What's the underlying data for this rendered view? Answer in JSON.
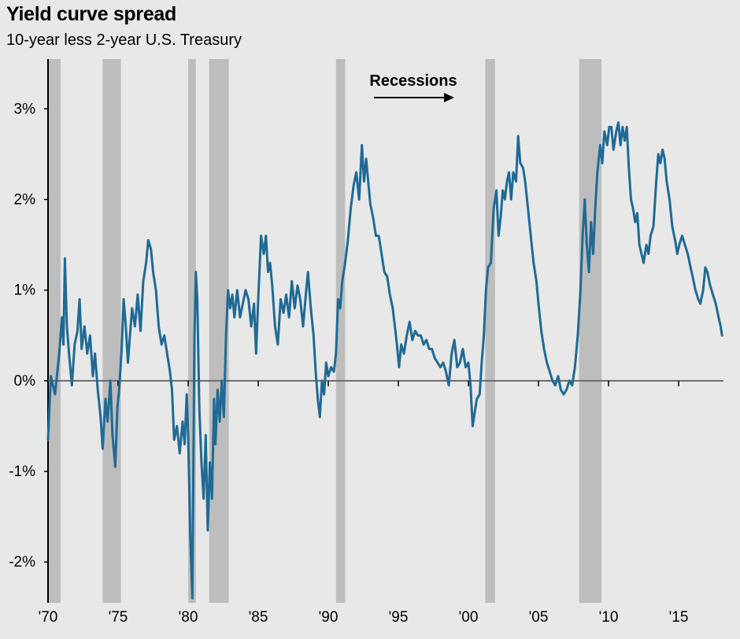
{
  "chart_data": {
    "type": "line",
    "title": "Yield curve spread",
    "subtitle": "10-year less 2-year U.S. Treasury",
    "annotation": "Recessions",
    "xlim": [
      1970,
      2018.2
    ],
    "ylim": [
      -2.45,
      3.55
    ],
    "y_ticks": [
      {
        "value": 3,
        "label": "3%"
      },
      {
        "value": 2,
        "label": "2%"
      },
      {
        "value": 1,
        "label": "1%"
      },
      {
        "value": 0,
        "label": "0%"
      },
      {
        "value": -1,
        "label": "-1%"
      },
      {
        "value": -2,
        "label": "-2%"
      }
    ],
    "x_ticks": [
      {
        "value": 1970,
        "label": "'70"
      },
      {
        "value": 1975,
        "label": "'75"
      },
      {
        "value": 1980,
        "label": "'80"
      },
      {
        "value": 1985,
        "label": "'85"
      },
      {
        "value": 1990,
        "label": "'90"
      },
      {
        "value": 1995,
        "label": "'95"
      },
      {
        "value": 2000,
        "label": "'00"
      },
      {
        "value": 2005,
        "label": "'05"
      },
      {
        "value": 2010,
        "label": "'10"
      },
      {
        "value": 2015,
        "label": "'15"
      }
    ],
    "recessions": [
      [
        1969.95,
        1970.9
      ],
      [
        1973.9,
        1975.2
      ],
      [
        1980.0,
        1980.55
      ],
      [
        1981.5,
        1982.9
      ],
      [
        1990.55,
        1991.2
      ],
      [
        2001.2,
        2001.9
      ],
      [
        2007.9,
        2009.5
      ]
    ],
    "series": [
      {
        "color": "#1f6a94",
        "points": [
          [
            1970.0,
            -0.65
          ],
          [
            1970.2,
            0.05
          ],
          [
            1970.5,
            -0.15
          ],
          [
            1970.8,
            0.3
          ],
          [
            1971.0,
            0.7
          ],
          [
            1971.1,
            0.4
          ],
          [
            1971.2,
            1.35
          ],
          [
            1971.35,
            0.6
          ],
          [
            1971.5,
            0.3
          ],
          [
            1971.7,
            -0.05
          ],
          [
            1971.9,
            0.4
          ],
          [
            1972.1,
            0.55
          ],
          [
            1972.25,
            0.9
          ],
          [
            1972.4,
            0.35
          ],
          [
            1972.6,
            0.6
          ],
          [
            1972.8,
            0.3
          ],
          [
            1973.0,
            0.5
          ],
          [
            1973.2,
            0.05
          ],
          [
            1973.35,
            0.3
          ],
          [
            1973.55,
            -0.1
          ],
          [
            1973.75,
            -0.4
          ],
          [
            1973.9,
            -0.75
          ],
          [
            1974.1,
            -0.2
          ],
          [
            1974.25,
            -0.45
          ],
          [
            1974.45,
            0.0
          ],
          [
            1974.6,
            -0.6
          ],
          [
            1974.8,
            -0.95
          ],
          [
            1974.95,
            -0.3
          ],
          [
            1975.1,
            -0.05
          ],
          [
            1975.25,
            0.35
          ],
          [
            1975.4,
            0.9
          ],
          [
            1975.55,
            0.6
          ],
          [
            1975.7,
            0.2
          ],
          [
            1975.85,
            0.5
          ],
          [
            1976.0,
            0.8
          ],
          [
            1976.2,
            0.6
          ],
          [
            1976.4,
            0.95
          ],
          [
            1976.6,
            0.55
          ],
          [
            1976.8,
            1.1
          ],
          [
            1977.0,
            1.3
          ],
          [
            1977.15,
            1.55
          ],
          [
            1977.35,
            1.45
          ],
          [
            1977.5,
            1.2
          ],
          [
            1977.7,
            1.0
          ],
          [
            1977.9,
            0.6
          ],
          [
            1978.1,
            0.4
          ],
          [
            1978.3,
            0.5
          ],
          [
            1978.5,
            0.3
          ],
          [
            1978.7,
            0.1
          ],
          [
            1978.85,
            -0.1
          ],
          [
            1979.0,
            -0.65
          ],
          [
            1979.2,
            -0.5
          ],
          [
            1979.4,
            -0.8
          ],
          [
            1979.6,
            -0.45
          ],
          [
            1979.75,
            -0.7
          ],
          [
            1979.9,
            -0.15
          ],
          [
            1980.0,
            -0.6
          ],
          [
            1980.15,
            -1.7
          ],
          [
            1980.3,
            -2.4
          ],
          [
            1980.45,
            0.5
          ],
          [
            1980.55,
            1.2
          ],
          [
            1980.65,
            0.9
          ],
          [
            1980.8,
            -0.3
          ],
          [
            1980.95,
            -0.9
          ],
          [
            1981.1,
            -1.3
          ],
          [
            1981.25,
            -0.6
          ],
          [
            1981.4,
            -1.65
          ],
          [
            1981.55,
            -0.9
          ],
          [
            1981.7,
            -1.3
          ],
          [
            1981.85,
            -0.2
          ],
          [
            1981.95,
            -0.7
          ],
          [
            1982.1,
            -0.1
          ],
          [
            1982.25,
            -0.45
          ],
          [
            1982.4,
            0.0
          ],
          [
            1982.55,
            -0.4
          ],
          [
            1982.7,
            0.5
          ],
          [
            1982.85,
            1.0
          ],
          [
            1983.0,
            0.8
          ],
          [
            1983.15,
            0.95
          ],
          [
            1983.3,
            0.7
          ],
          [
            1983.5,
            1.0
          ],
          [
            1983.7,
            0.7
          ],
          [
            1983.9,
            0.85
          ],
          [
            1984.1,
            1.0
          ],
          [
            1984.3,
            0.9
          ],
          [
            1984.5,
            0.6
          ],
          [
            1984.7,
            0.85
          ],
          [
            1984.85,
            0.3
          ],
          [
            1985.0,
            0.9
          ],
          [
            1985.2,
            1.6
          ],
          [
            1985.4,
            1.4
          ],
          [
            1985.55,
            1.6
          ],
          [
            1985.7,
            1.2
          ],
          [
            1985.85,
            1.3
          ],
          [
            1986.0,
            1.05
          ],
          [
            1986.2,
            0.6
          ],
          [
            1986.4,
            0.4
          ],
          [
            1986.6,
            0.9
          ],
          [
            1986.8,
            0.75
          ],
          [
            1987.0,
            0.95
          ],
          [
            1987.2,
            0.7
          ],
          [
            1987.4,
            1.1
          ],
          [
            1987.6,
            0.8
          ],
          [
            1987.8,
            1.05
          ],
          [
            1988.0,
            0.9
          ],
          [
            1988.2,
            0.6
          ],
          [
            1988.4,
            0.95
          ],
          [
            1988.55,
            1.2
          ],
          [
            1988.75,
            0.8
          ],
          [
            1988.95,
            0.5
          ],
          [
            1989.1,
            0.1
          ],
          [
            1989.25,
            -0.2
          ],
          [
            1989.4,
            -0.4
          ],
          [
            1989.55,
            0.0
          ],
          [
            1989.7,
            -0.15
          ],
          [
            1989.85,
            0.2
          ],
          [
            1990.0,
            0.05
          ],
          [
            1990.2,
            0.15
          ],
          [
            1990.4,
            0.1
          ],
          [
            1990.55,
            0.3
          ],
          [
            1990.7,
            0.9
          ],
          [
            1990.85,
            0.8
          ],
          [
            1991.0,
            1.1
          ],
          [
            1991.2,
            1.3
          ],
          [
            1991.4,
            1.55
          ],
          [
            1991.6,
            1.9
          ],
          [
            1991.8,
            2.15
          ],
          [
            1992.0,
            2.3
          ],
          [
            1992.2,
            2.0
          ],
          [
            1992.4,
            2.6
          ],
          [
            1992.55,
            2.2
          ],
          [
            1992.7,
            2.45
          ],
          [
            1992.85,
            2.2
          ],
          [
            1993.0,
            1.95
          ],
          [
            1993.2,
            1.8
          ],
          [
            1993.4,
            1.6
          ],
          [
            1993.6,
            1.6
          ],
          [
            1993.8,
            1.4
          ],
          [
            1994.0,
            1.2
          ],
          [
            1994.2,
            1.15
          ],
          [
            1994.4,
            0.95
          ],
          [
            1994.6,
            0.8
          ],
          [
            1994.75,
            0.6
          ],
          [
            1994.9,
            0.4
          ],
          [
            1995.05,
            0.15
          ],
          [
            1995.2,
            0.4
          ],
          [
            1995.4,
            0.3
          ],
          [
            1995.6,
            0.5
          ],
          [
            1995.8,
            0.65
          ],
          [
            1996.0,
            0.45
          ],
          [
            1996.2,
            0.55
          ],
          [
            1996.4,
            0.5
          ],
          [
            1996.6,
            0.5
          ],
          [
            1996.8,
            0.4
          ],
          [
            1997.0,
            0.45
          ],
          [
            1997.2,
            0.35
          ],
          [
            1997.4,
            0.35
          ],
          [
            1997.6,
            0.25
          ],
          [
            1997.8,
            0.2
          ],
          [
            1998.0,
            0.15
          ],
          [
            1998.2,
            0.2
          ],
          [
            1998.4,
            0.1
          ],
          [
            1998.6,
            -0.05
          ],
          [
            1998.8,
            0.3
          ],
          [
            1999.0,
            0.45
          ],
          [
            1999.2,
            0.15
          ],
          [
            1999.4,
            0.2
          ],
          [
            1999.6,
            0.35
          ],
          [
            1999.8,
            0.15
          ],
          [
            2000.0,
            0.2
          ],
          [
            2000.15,
            -0.05
          ],
          [
            2000.3,
            -0.5
          ],
          [
            2000.45,
            -0.35
          ],
          [
            2000.6,
            -0.2
          ],
          [
            2000.8,
            -0.15
          ],
          [
            2000.95,
            0.2
          ],
          [
            2001.1,
            0.5
          ],
          [
            2001.25,
            1.0
          ],
          [
            2001.4,
            1.25
          ],
          [
            2001.6,
            1.3
          ],
          [
            2001.8,
            1.9
          ],
          [
            2002.0,
            2.1
          ],
          [
            2002.15,
            1.6
          ],
          [
            2002.3,
            1.8
          ],
          [
            2002.45,
            2.1
          ],
          [
            2002.6,
            2.0
          ],
          [
            2002.75,
            2.2
          ],
          [
            2002.9,
            2.3
          ],
          [
            2003.05,
            2.0
          ],
          [
            2003.2,
            2.3
          ],
          [
            2003.4,
            2.2
          ],
          [
            2003.55,
            2.7
          ],
          [
            2003.7,
            2.4
          ],
          [
            2003.9,
            2.35
          ],
          [
            2004.05,
            2.2
          ],
          [
            2004.25,
            1.9
          ],
          [
            2004.45,
            1.6
          ],
          [
            2004.65,
            1.3
          ],
          [
            2004.85,
            1.1
          ],
          [
            2005.0,
            0.85
          ],
          [
            2005.2,
            0.55
          ],
          [
            2005.4,
            0.35
          ],
          [
            2005.6,
            0.2
          ],
          [
            2005.8,
            0.1
          ],
          [
            2006.0,
            0.0
          ],
          [
            2006.2,
            -0.05
          ],
          [
            2006.4,
            0.05
          ],
          [
            2006.6,
            -0.1
          ],
          [
            2006.8,
            -0.15
          ],
          [
            2007.0,
            -0.1
          ],
          [
            2007.2,
            0.0
          ],
          [
            2007.4,
            -0.05
          ],
          [
            2007.6,
            0.15
          ],
          [
            2007.8,
            0.5
          ],
          [
            2008.0,
            1.0
          ],
          [
            2008.15,
            1.6
          ],
          [
            2008.3,
            2.0
          ],
          [
            2008.45,
            1.5
          ],
          [
            2008.6,
            1.2
          ],
          [
            2008.75,
            1.75
          ],
          [
            2008.9,
            1.4
          ],
          [
            2009.05,
            1.9
          ],
          [
            2009.2,
            2.3
          ],
          [
            2009.4,
            2.6
          ],
          [
            2009.55,
            2.4
          ],
          [
            2009.7,
            2.75
          ],
          [
            2009.9,
            2.6
          ],
          [
            2010.05,
            2.8
          ],
          [
            2010.2,
            2.8
          ],
          [
            2010.35,
            2.55
          ],
          [
            2010.55,
            2.75
          ],
          [
            2010.7,
            2.85
          ],
          [
            2010.85,
            2.6
          ],
          [
            2011.0,
            2.8
          ],
          [
            2011.15,
            2.65
          ],
          [
            2011.3,
            2.8
          ],
          [
            2011.45,
            2.35
          ],
          [
            2011.6,
            2.0
          ],
          [
            2011.75,
            1.9
          ],
          [
            2011.9,
            1.75
          ],
          [
            2012.05,
            1.85
          ],
          [
            2012.2,
            1.5
          ],
          [
            2012.35,
            1.4
          ],
          [
            2012.5,
            1.3
          ],
          [
            2012.7,
            1.5
          ],
          [
            2012.85,
            1.4
          ],
          [
            2013.0,
            1.6
          ],
          [
            2013.2,
            1.7
          ],
          [
            2013.4,
            2.2
          ],
          [
            2013.55,
            2.5
          ],
          [
            2013.7,
            2.4
          ],
          [
            2013.85,
            2.55
          ],
          [
            2014.0,
            2.45
          ],
          [
            2014.15,
            2.2
          ],
          [
            2014.35,
            2.0
          ],
          [
            2014.55,
            1.7
          ],
          [
            2014.75,
            1.55
          ],
          [
            2014.9,
            1.4
          ],
          [
            2015.05,
            1.5
          ],
          [
            2015.25,
            1.6
          ],
          [
            2015.45,
            1.5
          ],
          [
            2015.65,
            1.4
          ],
          [
            2015.85,
            1.25
          ],
          [
            2016.0,
            1.15
          ],
          [
            2016.2,
            1.0
          ],
          [
            2016.4,
            0.9
          ],
          [
            2016.55,
            0.85
          ],
          [
            2016.75,
            1.0
          ],
          [
            2016.9,
            1.25
          ],
          [
            2017.05,
            1.2
          ],
          [
            2017.25,
            1.05
          ],
          [
            2017.45,
            0.95
          ],
          [
            2017.65,
            0.85
          ],
          [
            2017.85,
            0.7
          ],
          [
            2018.0,
            0.6
          ],
          [
            2018.1,
            0.5
          ]
        ]
      }
    ],
    "grid": false,
    "legend": "none"
  }
}
